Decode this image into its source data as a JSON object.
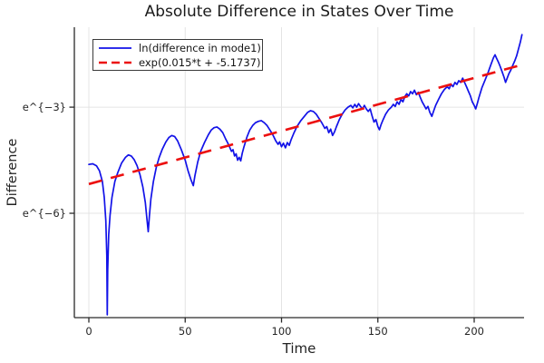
{
  "chart_data": {
    "type": "line",
    "title": "Absolute Difference in States Over Time",
    "xlabel": "Time",
    "ylabel": "Difference",
    "y_scale": "natural-log",
    "xlim": [
      -7.53,
      225.88
    ],
    "ylim_ln": [
      -8.95,
      -0.74
    ],
    "grid": true,
    "legend_position": "top-left-inside",
    "x_ticks": [
      {
        "value": 0,
        "label": "0"
      },
      {
        "value": 50,
        "label": "50"
      },
      {
        "value": 100,
        "label": "100"
      },
      {
        "value": 150,
        "label": "150"
      },
      {
        "value": 200,
        "label": "200"
      }
    ],
    "y_ticks": [
      {
        "value": -3,
        "label": "e^{−3}"
      },
      {
        "value": -6,
        "label": "e^{−6}"
      }
    ],
    "series": [
      {
        "name": "ln(difference in mode1)",
        "style": "solid",
        "color": "#1212e8",
        "width": 1.7,
        "points_t_ln": [
          [
            0,
            -4.62
          ],
          [
            2,
            -4.6
          ],
          [
            4,
            -4.66
          ],
          [
            5.5,
            -4.8
          ],
          [
            7,
            -5.1
          ],
          [
            8,
            -5.55
          ],
          [
            8.8,
            -6.2
          ],
          [
            9.3,
            -7.2
          ],
          [
            9.55,
            -8.87
          ],
          [
            9.8,
            -7.6
          ],
          [
            10.3,
            -6.6
          ],
          [
            11,
            -6.05
          ],
          [
            12,
            -5.55
          ],
          [
            13.5,
            -5.1
          ],
          [
            15,
            -4.85
          ],
          [
            17,
            -4.58
          ],
          [
            19,
            -4.42
          ],
          [
            20.5,
            -4.35
          ],
          [
            22,
            -4.38
          ],
          [
            23.5,
            -4.48
          ],
          [
            25,
            -4.65
          ],
          [
            26.5,
            -4.9
          ],
          [
            28,
            -5.25
          ],
          [
            29.3,
            -5.7
          ],
          [
            30.2,
            -6.2
          ],
          [
            30.8,
            -6.52
          ],
          [
            31.4,
            -6.1
          ],
          [
            32.2,
            -5.6
          ],
          [
            33.5,
            -5.1
          ],
          [
            35,
            -4.7
          ],
          [
            36.5,
            -4.42
          ],
          [
            38,
            -4.2
          ],
          [
            40,
            -3.98
          ],
          [
            41.5,
            -3.86
          ],
          [
            43,
            -3.8
          ],
          [
            44.5,
            -3.83
          ],
          [
            46,
            -3.95
          ],
          [
            48,
            -4.2
          ],
          [
            50,
            -4.5
          ],
          [
            51.5,
            -4.8
          ],
          [
            53,
            -5.05
          ],
          [
            54.2,
            -5.22
          ],
          [
            55,
            -4.95
          ],
          [
            56.5,
            -4.55
          ],
          [
            58,
            -4.25
          ],
          [
            60,
            -4.0
          ],
          [
            62,
            -3.78
          ],
          [
            63.5,
            -3.65
          ],
          [
            65,
            -3.58
          ],
          [
            66.5,
            -3.56
          ],
          [
            68,
            -3.62
          ],
          [
            69.5,
            -3.72
          ],
          [
            71,
            -3.9
          ],
          [
            72,
            -4.0
          ],
          [
            73,
            -4.12
          ],
          [
            74,
            -4.25
          ],
          [
            74.8,
            -4.2
          ],
          [
            75.6,
            -4.38
          ],
          [
            76.4,
            -4.32
          ],
          [
            77.2,
            -4.5
          ],
          [
            78,
            -4.42
          ],
          [
            78.8,
            -4.52
          ],
          [
            79.6,
            -4.3
          ],
          [
            80.5,
            -4.12
          ],
          [
            82,
            -3.85
          ],
          [
            83.5,
            -3.65
          ],
          [
            85,
            -3.52
          ],
          [
            86.5,
            -3.44
          ],
          [
            88,
            -3.4
          ],
          [
            89.5,
            -3.38
          ],
          [
            91,
            -3.44
          ],
          [
            92.5,
            -3.52
          ],
          [
            94,
            -3.65
          ],
          [
            95.5,
            -3.78
          ],
          [
            97,
            -3.95
          ],
          [
            98.2,
            -4.05
          ],
          [
            99,
            -3.98
          ],
          [
            100,
            -4.12
          ],
          [
            101,
            -4.02
          ],
          [
            102,
            -4.15
          ],
          [
            103,
            -4.0
          ],
          [
            104,
            -4.08
          ],
          [
            105,
            -3.92
          ],
          [
            106.5,
            -3.72
          ],
          [
            108,
            -3.55
          ],
          [
            110,
            -3.38
          ],
          [
            112,
            -3.25
          ],
          [
            113.5,
            -3.15
          ],
          [
            115,
            -3.1
          ],
          [
            116.5,
            -3.12
          ],
          [
            118,
            -3.2
          ],
          [
            119.5,
            -3.32
          ],
          [
            121,
            -3.45
          ],
          [
            122.5,
            -3.6
          ],
          [
            123.5,
            -3.55
          ],
          [
            124.5,
            -3.72
          ],
          [
            125.5,
            -3.62
          ],
          [
            126.5,
            -3.8
          ],
          [
            127.5,
            -3.7
          ],
          [
            128.5,
            -3.55
          ],
          [
            130,
            -3.35
          ],
          [
            131.5,
            -3.2
          ],
          [
            133,
            -3.08
          ],
          [
            134.5,
            -3.0
          ],
          [
            136,
            -2.95
          ],
          [
            137,
            -3.02
          ],
          [
            138,
            -2.92
          ],
          [
            139,
            -3.0
          ],
          [
            140,
            -2.9
          ],
          [
            141,
            -2.98
          ],
          [
            142,
            -3.05
          ],
          [
            143,
            -2.95
          ],
          [
            144,
            -3.05
          ],
          [
            145,
            -3.12
          ],
          [
            146,
            -3.05
          ],
          [
            147,
            -3.25
          ],
          [
            148,
            -3.42
          ],
          [
            149,
            -3.35
          ],
          [
            150,
            -3.55
          ],
          [
            150.8,
            -3.64
          ],
          [
            151.6,
            -3.5
          ],
          [
            152.5,
            -3.38
          ],
          [
            154,
            -3.2
          ],
          [
            155.5,
            -3.08
          ],
          [
            157,
            -3.0
          ],
          [
            158,
            -2.92
          ],
          [
            159,
            -2.98
          ],
          [
            160,
            -2.85
          ],
          [
            161,
            -2.92
          ],
          [
            162,
            -2.78
          ],
          [
            163,
            -2.85
          ],
          [
            164,
            -2.7
          ],
          [
            165,
            -2.62
          ],
          [
            166,
            -2.68
          ],
          [
            167,
            -2.56
          ],
          [
            168,
            -2.62
          ],
          [
            169,
            -2.52
          ],
          [
            170,
            -2.65
          ],
          [
            171,
            -2.58
          ],
          [
            172,
            -2.72
          ],
          [
            173,
            -2.85
          ],
          [
            174,
            -2.95
          ],
          [
            175,
            -3.05
          ],
          [
            176,
            -2.98
          ],
          [
            177,
            -3.15
          ],
          [
            178,
            -3.26
          ],
          [
            179,
            -3.1
          ],
          [
            180,
            -2.95
          ],
          [
            181.5,
            -2.78
          ],
          [
            183,
            -2.62
          ],
          [
            184.5,
            -2.5
          ],
          [
            186,
            -2.42
          ],
          [
            187,
            -2.48
          ],
          [
            188,
            -2.35
          ],
          [
            189,
            -2.42
          ],
          [
            190,
            -2.3
          ],
          [
            191,
            -2.36
          ],
          [
            192,
            -2.25
          ],
          [
            193,
            -2.3
          ],
          [
            194,
            -2.18
          ],
          [
            195,
            -2.3
          ],
          [
            196,
            -2.42
          ],
          [
            197,
            -2.55
          ],
          [
            198,
            -2.68
          ],
          [
            199,
            -2.85
          ],
          [
            200,
            -2.95
          ],
          [
            200.8,
            -3.05
          ],
          [
            201.6,
            -2.9
          ],
          [
            202.5,
            -2.72
          ],
          [
            204,
            -2.45
          ],
          [
            205.5,
            -2.25
          ],
          [
            207,
            -2.05
          ],
          [
            208,
            -1.9
          ],
          [
            209,
            -1.75
          ],
          [
            210,
            -1.6
          ],
          [
            210.8,
            -1.52
          ],
          [
            211.6,
            -1.62
          ],
          [
            212.5,
            -1.72
          ],
          [
            213.5,
            -1.85
          ],
          [
            214.5,
            -2.0
          ],
          [
            215.5,
            -2.15
          ],
          [
            216.3,
            -2.3
          ],
          [
            217,
            -2.2
          ],
          [
            218,
            -2.05
          ],
          [
            219,
            -1.95
          ],
          [
            220,
            -1.82
          ],
          [
            221,
            -1.7
          ],
          [
            222,
            -1.55
          ],
          [
            223,
            -1.35
          ],
          [
            224,
            -1.15
          ],
          [
            224.8,
            -0.95
          ]
        ]
      },
      {
        "name": "exp(0.015*t + -5.1737)",
        "style": "dashed",
        "color": "#ec1010",
        "width": 2.6,
        "model": {
          "slope": 0.015,
          "intercept": -5.1737
        },
        "t_range": [
          0,
          224
        ]
      }
    ]
  },
  "style": {
    "spine_color": "#2a2a2a",
    "grid_color": "#e4e4e4",
    "text_color": "#262626",
    "background": "#ffffff"
  }
}
